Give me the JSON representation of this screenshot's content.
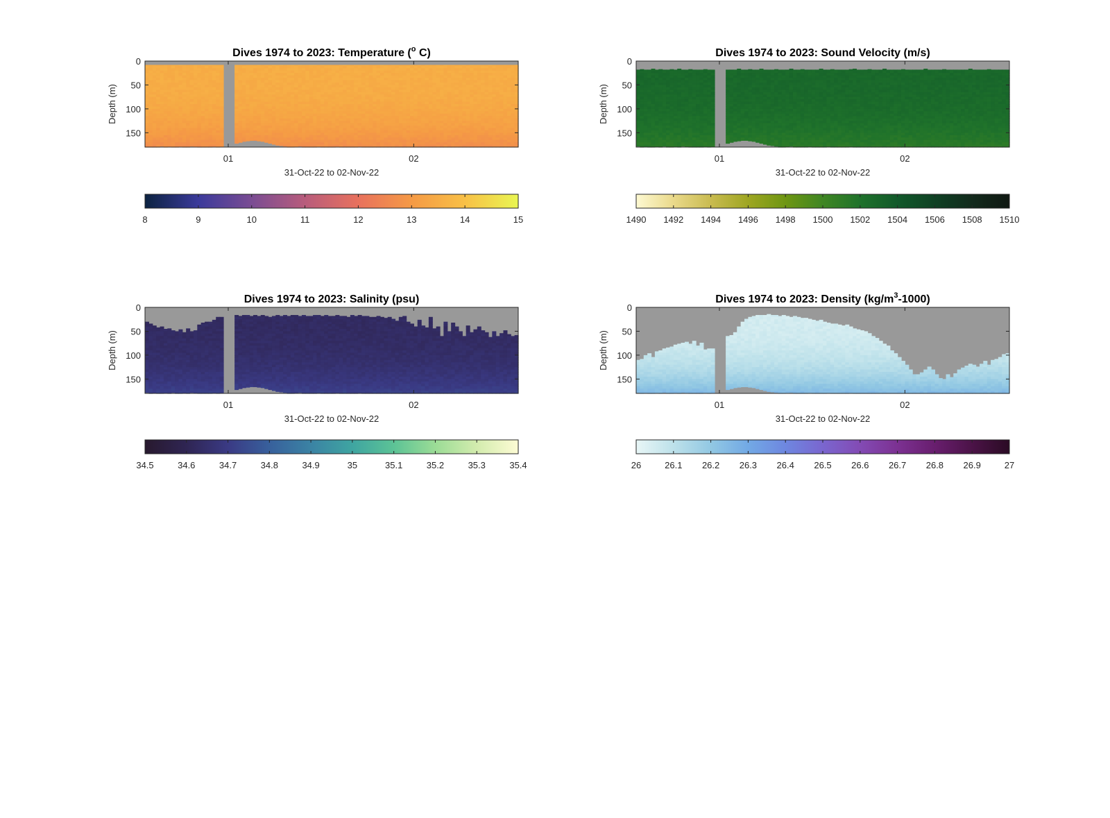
{
  "figure": {
    "background": "#ffffff",
    "nodata_color": "#999999"
  },
  "chart_data": [
    {
      "type": "heatmap",
      "title": "Dives 1974 to 2023: Temperature (",
      "title_sup": "o",
      "title_tail": " C)",
      "xlabel": "31-Oct-22 to 02-Nov-22",
      "ylabel": "Depth (m)",
      "x_ticks": [
        "01",
        "02"
      ],
      "y_ticks": [
        0,
        50,
        100,
        150
      ],
      "ylim": [
        0,
        180
      ],
      "colorbar": {
        "range": [
          8,
          15
        ],
        "ticks": [
          "8",
          "9",
          "10",
          "11",
          "12",
          "13",
          "14",
          "15"
        ],
        "colors": [
          "#0c2341",
          "#3b3a9b",
          "#7a4c93",
          "#b85c7c",
          "#e8715d",
          "#f59a45",
          "#f8c046",
          "#e9f652"
        ]
      },
      "base_value": 13.5,
      "deep_value": 12.7,
      "surface_profile": [
        8,
        8,
        8,
        8,
        8,
        8,
        8,
        8,
        8,
        8,
        8,
        8,
        8,
        8,
        8,
        8,
        8,
        8,
        8,
        8,
        8,
        8,
        8,
        8,
        8,
        8,
        8,
        8,
        8,
        8,
        8,
        8,
        8,
        8,
        8,
        8,
        8,
        8,
        8,
        8,
        8,
        8,
        8,
        8,
        8,
        8,
        8,
        8,
        8,
        8,
        8,
        8,
        8,
        8,
        8,
        8,
        8,
        8,
        8,
        8,
        8,
        8,
        8,
        8,
        8,
        8,
        8,
        8,
        8,
        8,
        8,
        8,
        8,
        8,
        8,
        8,
        8,
        8,
        8,
        8,
        8,
        8,
        8,
        8,
        8,
        8,
        8,
        8,
        8,
        8,
        8,
        8,
        8,
        8,
        8,
        8,
        8,
        8,
        8,
        8
      ],
      "bottom_profile": [
        180,
        182,
        181,
        180,
        178,
        180,
        179,
        181,
        180,
        179,
        180,
        180,
        178,
        179,
        180,
        180,
        180,
        180,
        179,
        180,
        179,
        178,
        176,
        174,
        172,
        170,
        168,
        167,
        166,
        166,
        167,
        168,
        170,
        172,
        174,
        176,
        177,
        178,
        180,
        180,
        179,
        178,
        180,
        180,
        180,
        180,
        179,
        180,
        180,
        180,
        180,
        179,
        180,
        180,
        180,
        180,
        180,
        179,
        180,
        180,
        180,
        180,
        180,
        180,
        180,
        180,
        180,
        180,
        180,
        180,
        180,
        180,
        180,
        180,
        180,
        180,
        180,
        180,
        180,
        180,
        180,
        180,
        180,
        180,
        180,
        180,
        180,
        180,
        180,
        180,
        180,
        180,
        180,
        180,
        180,
        180,
        180,
        180,
        180,
        180
      ],
      "gap_x": [
        0.215,
        0.24
      ]
    },
    {
      "type": "heatmap",
      "title": "Dives 1974 to 2023: Sound Velocity (m/s)",
      "title_sup": "",
      "title_tail": "",
      "xlabel": "31-Oct-22 to 02-Nov-22",
      "ylabel": "Depth (m)",
      "x_ticks": [
        "01",
        "02"
      ],
      "y_ticks": [
        0,
        50,
        100,
        150
      ],
      "ylim": [
        0,
        180
      ],
      "colorbar": {
        "range": [
          1490,
          1510
        ],
        "ticks": [
          "1490",
          "1492",
          "1494",
          "1496",
          "1498",
          "1500",
          "1502",
          "1504",
          "1506",
          "1508",
          "1510"
        ],
        "colors": [
          "#fdf9d2",
          "#ead98a",
          "#c9bb50",
          "#9ea622",
          "#6e9612",
          "#3f8623",
          "#1f722b",
          "#11592a",
          "#0f4124",
          "#122a1c",
          "#101812"
        ]
      },
      "base_value": 1502.8,
      "deep_value": 1501.2,
      "surface_profile": [
        18,
        17,
        18,
        18,
        16,
        18,
        17,
        18,
        18,
        17,
        18,
        16,
        18,
        18,
        17,
        18,
        18,
        18,
        17,
        18,
        18,
        16,
        18,
        17,
        18,
        18,
        18,
        16,
        18,
        18,
        17,
        18,
        18,
        16,
        18,
        18,
        18,
        17,
        18,
        18,
        18,
        16,
        18,
        18,
        17,
        18,
        18,
        18,
        18,
        16,
        18,
        18,
        17,
        18,
        18,
        18,
        18,
        17,
        16,
        18,
        18,
        18,
        17,
        18,
        18,
        18,
        16,
        18,
        18,
        18,
        18,
        17,
        18,
        18,
        18,
        18,
        18,
        16,
        18,
        18,
        18,
        18,
        17,
        18,
        18,
        18,
        18,
        18,
        18,
        16,
        18,
        18,
        18,
        18,
        17,
        18,
        18,
        18,
        18,
        18
      ],
      "bottom_profile": [
        178,
        180,
        179,
        180,
        181,
        179,
        180,
        178,
        180,
        180,
        179,
        180,
        178,
        179,
        180,
        180,
        180,
        180,
        179,
        180,
        179,
        178,
        176,
        174,
        172,
        170,
        168,
        167,
        166,
        166,
        167,
        168,
        170,
        172,
        174,
        176,
        177,
        178,
        180,
        180,
        179,
        178,
        180,
        180,
        180,
        180,
        179,
        180,
        180,
        180,
        180,
        179,
        180,
        180,
        180,
        180,
        180,
        179,
        180,
        180,
        180,
        180,
        180,
        180,
        180,
        180,
        180,
        180,
        180,
        180,
        180,
        180,
        180,
        180,
        180,
        180,
        180,
        180,
        180,
        180,
        180,
        180,
        180,
        180,
        180,
        180,
        180,
        180,
        180,
        180,
        180,
        180,
        180,
        180,
        180,
        180,
        180,
        180,
        180,
        180
      ],
      "gap_x": [
        0.215,
        0.24
      ]
    },
    {
      "type": "heatmap",
      "title": "Dives 1974 to 2023: Salinity (psu)",
      "title_sup": "",
      "title_tail": "",
      "xlabel": "31-Oct-22 to 02-Nov-22",
      "ylabel": "Depth (m)",
      "x_ticks": [
        "01",
        "02"
      ],
      "y_ticks": [
        0,
        50,
        100,
        150
      ],
      "ylim": [
        0,
        180
      ],
      "colorbar": {
        "range": [
          34.5,
          35.4
        ],
        "ticks": [
          "34.5",
          "34.6",
          "34.7",
          "34.8",
          "34.9",
          "35",
          "35.1",
          "35.2",
          "35.3",
          "35.4"
        ],
        "colors": [
          "#28192e",
          "#2f2553",
          "#3a3a84",
          "#38609c",
          "#3b83a4",
          "#3fa5a1",
          "#5cc396",
          "#9bdc96",
          "#d3ecae",
          "#fdfbd4"
        ]
      },
      "base_value": 34.63,
      "deep_value": 34.72,
      "surface_profile": [
        30,
        34,
        38,
        42,
        40,
        45,
        44,
        48,
        50,
        46,
        52,
        44,
        50,
        48,
        36,
        32,
        30,
        30,
        26,
        20,
        20,
        20,
        18,
        16,
        16,
        18,
        16,
        16,
        18,
        16,
        18,
        16,
        18,
        20,
        18,
        16,
        18,
        16,
        18,
        16,
        16,
        18,
        16,
        18,
        18,
        16,
        16,
        18,
        16,
        18,
        18,
        16,
        18,
        18,
        20,
        16,
        18,
        16,
        18,
        18,
        20,
        20,
        18,
        20,
        22,
        20,
        24,
        28,
        20,
        18,
        30,
        34,
        40,
        26,
        38,
        42,
        20,
        44,
        40,
        60,
        30,
        50,
        32,
        40,
        50,
        60,
        38,
        52,
        46,
        40,
        48,
        52,
        62,
        50,
        60,
        54,
        48,
        56,
        60,
        58
      ],
      "bottom_profile": [
        178,
        180,
        179,
        181,
        180,
        179,
        180,
        178,
        180,
        180,
        179,
        180,
        178,
        179,
        180,
        180,
        180,
        180,
        179,
        180,
        179,
        178,
        176,
        174,
        172,
        170,
        168,
        167,
        166,
        166,
        167,
        168,
        170,
        172,
        174,
        176,
        177,
        178,
        180,
        180,
        179,
        178,
        180,
        180,
        180,
        180,
        179,
        180,
        180,
        180,
        180,
        179,
        180,
        180,
        180,
        180,
        180,
        179,
        180,
        180,
        180,
        180,
        180,
        180,
        180,
        180,
        180,
        180,
        180,
        180,
        180,
        180,
        180,
        180,
        180,
        180,
        180,
        180,
        180,
        180,
        180,
        180,
        180,
        180,
        180,
        180,
        180,
        180,
        180,
        180,
        180,
        180,
        180,
        180,
        180,
        180,
        180,
        180,
        180,
        180
      ],
      "gap_x": [
        0.215,
        0.24
      ]
    },
    {
      "type": "heatmap",
      "title": "Dives 1974 to 2023: Density (kg/m",
      "title_sup": "3",
      "title_tail": "-1000)",
      "xlabel": "31-Oct-22 to 02-Nov-22",
      "ylabel": "Depth (m)",
      "x_ticks": [
        "01",
        "02"
      ],
      "y_ticks": [
        0,
        50,
        100,
        150
      ],
      "ylim": [
        0,
        180
      ],
      "colorbar": {
        "range": [
          26,
          27
        ],
        "ticks": [
          "26",
          "26.1",
          "26.2",
          "26.3",
          "26.4",
          "26.5",
          "26.6",
          "26.7",
          "26.8",
          "26.9",
          "27"
        ],
        "colors": [
          "#e8f6f6",
          "#bde1ea",
          "#92c8e3",
          "#72a9e5",
          "#6e87e0",
          "#7a66cf",
          "#834bb4",
          "#7c3192",
          "#681e6e",
          "#4b1347",
          "#2a0b24"
        ]
      },
      "base_value": 26.05,
      "deep_value": 26.25,
      "surface_profile": [
        110,
        108,
        100,
        96,
        104,
        92,
        90,
        86,
        84,
        82,
        78,
        76,
        74,
        72,
        76,
        70,
        80,
        74,
        88,
        86,
        86,
        120,
        120,
        70,
        60,
        58,
        52,
        40,
        30,
        24,
        20,
        18,
        16,
        16,
        16,
        14,
        16,
        16,
        18,
        16,
        18,
        20,
        18,
        20,
        22,
        22,
        24,
        26,
        28,
        26,
        30,
        32,
        34,
        34,
        36,
        38,
        36,
        40,
        44,
        46,
        48,
        50,
        54,
        60,
        64,
        70,
        76,
        80,
        90,
        96,
        104,
        112,
        120,
        130,
        140,
        140,
        136,
        130,
        124,
        130,
        140,
        148,
        150,
        140,
        146,
        138,
        130,
        126,
        122,
        118,
        120,
        124,
        118,
        112,
        120,
        110,
        108,
        104,
        98,
        96
      ],
      "bottom_profile": [
        178,
        180,
        179,
        181,
        180,
        179,
        180,
        178,
        180,
        180,
        179,
        180,
        178,
        179,
        180,
        180,
        180,
        180,
        179,
        180,
        179,
        178,
        176,
        174,
        172,
        170,
        168,
        167,
        166,
        166,
        167,
        168,
        170,
        172,
        174,
        176,
        177,
        178,
        180,
        180,
        179,
        178,
        180,
        180,
        180,
        180,
        179,
        180,
        180,
        180,
        180,
        179,
        180,
        180,
        180,
        180,
        180,
        179,
        180,
        180,
        180,
        180,
        180,
        180,
        180,
        180,
        180,
        180,
        180,
        180,
        180,
        180,
        180,
        180,
        180,
        180,
        180,
        180,
        180,
        180,
        180,
        180,
        180,
        180,
        180,
        180,
        180,
        180,
        180,
        180,
        180,
        180,
        180,
        180,
        180,
        180,
        180,
        180,
        180,
        180
      ],
      "gap_x": [
        0.215,
        0.24
      ]
    }
  ]
}
